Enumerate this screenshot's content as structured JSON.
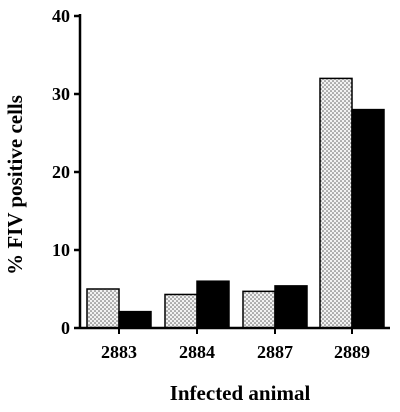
{
  "chart_data": {
    "type": "bar",
    "title": "",
    "xlabel": "Infected animal",
    "ylabel": "% FIV positive cells",
    "categories": [
      "2883",
      "2884",
      "2887",
      "2889"
    ],
    "series": [
      {
        "values": [
          5.0,
          4.3,
          4.7,
          32.0
        ],
        "pattern": "stipple",
        "color": "#ececec"
      },
      {
        "values": [
          2.1,
          6.0,
          5.4,
          28.0
        ],
        "pattern": "solid",
        "color": "#000000"
      }
    ],
    "ylim": [
      0,
      40
    ],
    "yticks": [
      0,
      10,
      20,
      30,
      40
    ],
    "grid": false,
    "legend": "none"
  }
}
